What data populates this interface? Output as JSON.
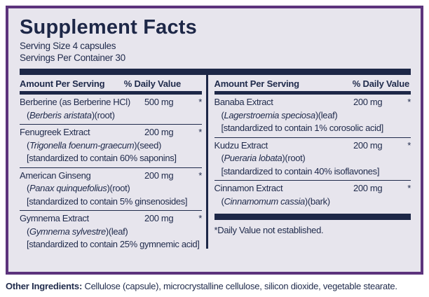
{
  "colors": {
    "navy_text": "#1f2a4b",
    "navy_bar": "#1d2747",
    "purple_border": "#5c337c",
    "panel_background": "#e7e5ed",
    "page_background": "#ffffff"
  },
  "header": {
    "title": "Supplement Facts",
    "serving_size": "Serving Size 4 capsules",
    "servings_per_container": "Servings Per Container 30"
  },
  "table": {
    "column_headers": {
      "amount": "Amount Per Serving",
      "daily_value": "% Daily Value"
    },
    "columns": {
      "left": [
        {
          "name": "Berberine (as Berberine HCl)",
          "amount": "500 mg",
          "daily_value": "*",
          "details": [
            {
              "pre": "(",
              "italic": "Berberis aristata",
              "post": ")(root)"
            }
          ]
        },
        {
          "name": "Fenugreek Extract",
          "amount": "200 mg",
          "daily_value": "*",
          "details": [
            {
              "pre": "(",
              "italic": "Trigonella foenum-graecum",
              "post": ")(seed)"
            },
            {
              "pre": "[standardized to contain 60% saponins]",
              "italic": "",
              "post": ""
            }
          ]
        },
        {
          "name": "American Ginseng",
          "amount": "200 mg",
          "daily_value": "*",
          "details": [
            {
              "pre": "(",
              "italic": "Panax quinquefolius",
              "post": ")(root)"
            },
            {
              "pre": "[standardized to contain 5% ginsenosides]",
              "italic": "",
              "post": ""
            }
          ]
        },
        {
          "name": "Gymnema Extract",
          "amount": "200 mg",
          "daily_value": "*",
          "details": [
            {
              "pre": "(",
              "italic": "Gymnema sylvestre",
              "post": ")(leaf)"
            },
            {
              "pre": "[standardized to contain 25% gymnemic acid]",
              "italic": "",
              "post": ""
            }
          ]
        }
      ],
      "right": [
        {
          "name": "Banaba Extract",
          "amount": "200 mg",
          "daily_value": "*",
          "details": [
            {
              "pre": "(",
              "italic": "Lagerstroemia speciosa",
              "post": ")(leaf)"
            },
            {
              "pre": "[standardized to contain 1% corosolic acid]",
              "italic": "",
              "post": ""
            }
          ]
        },
        {
          "name": "Kudzu Extract",
          "amount": "200 mg",
          "daily_value": "*",
          "details": [
            {
              "pre": "(",
              "italic": "Pueraria lobata",
              "post": ")(root)"
            },
            {
              "pre": "[standardized to contain 40% isoflavones]",
              "italic": "",
              "post": ""
            }
          ]
        },
        {
          "name": "Cinnamon Extract",
          "amount": "200 mg",
          "daily_value": "*",
          "details": [
            {
              "pre": "(",
              "italic": "Cinnamomum cassia",
              "post": ")(bark)"
            }
          ]
        }
      ]
    },
    "footnote": "*Daily Value not established."
  },
  "other_ingredients": {
    "label": "Other Ingredients:",
    "text": " Cellulose (capsule), microcrystalline cellulose, silicon dioxide, vegetable stearate."
  }
}
